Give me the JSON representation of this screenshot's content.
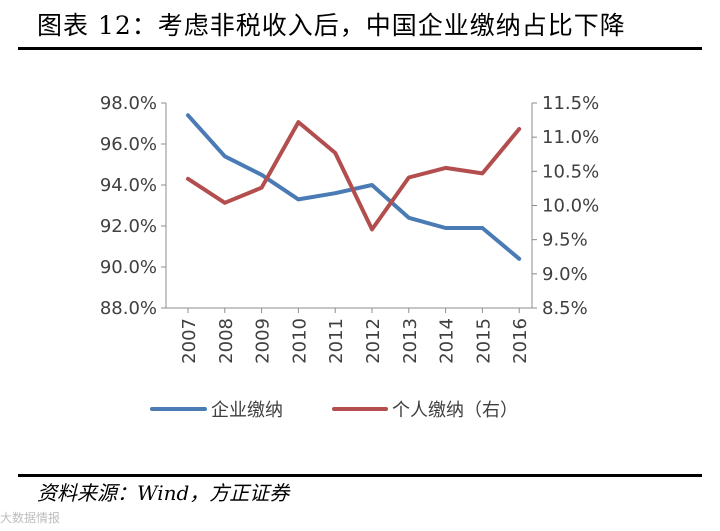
{
  "page": {
    "title": "图表 12：考虑非税收入后，中国企业缴纳占比下降",
    "source": "资料来源：Wind，方正证券",
    "watermark": "大数据情报"
  },
  "colors": {
    "corporate": "#4a7bb5",
    "individual": "#b34e4e",
    "axis": "#8c8c8c",
    "text": "#404040"
  },
  "chart_data": {
    "type": "line",
    "x": [
      "2007",
      "2008",
      "2009",
      "2010",
      "2011",
      "2012",
      "2013",
      "2014",
      "2015",
      "2016"
    ],
    "y_left": {
      "range": [
        88.0,
        98.0
      ],
      "ticks": [
        "88.0%",
        "90.0%",
        "92.0%",
        "94.0%",
        "96.0%",
        "98.0%"
      ],
      "tick_values": [
        88,
        90,
        92,
        94,
        96,
        98
      ]
    },
    "y_right": {
      "range": [
        8.5,
        11.5
      ],
      "ticks": [
        "8.5%",
        "9.0%",
        "9.5%",
        "10.0%",
        "10.5%",
        "11.0%",
        "11.5%"
      ],
      "tick_values": [
        8.5,
        9.0,
        9.5,
        10.0,
        10.5,
        11.0,
        11.5
      ]
    },
    "series": [
      {
        "name": "企业缴纳",
        "axis": "left",
        "values": [
          97.4,
          95.4,
          94.5,
          93.3,
          93.6,
          94.0,
          92.4,
          91.9,
          91.9,
          90.4
        ]
      },
      {
        "name": "个人缴纳（右）",
        "axis": "right",
        "values": [
          10.39,
          10.04,
          10.26,
          11.22,
          10.77,
          9.65,
          10.41,
          10.55,
          10.47,
          11.12
        ]
      }
    ],
    "grid": false,
    "legend_position": "bottom"
  }
}
